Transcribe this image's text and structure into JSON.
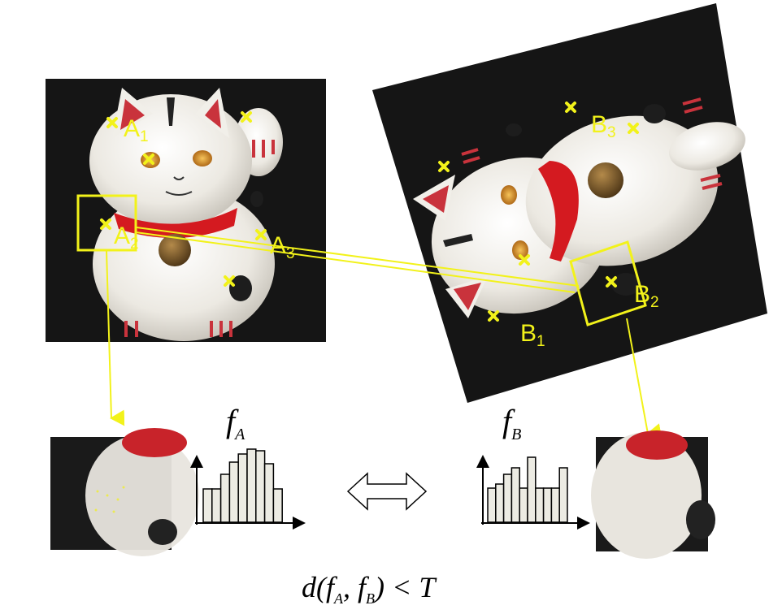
{
  "colors": {
    "marker": "#f2f21a",
    "bg": "#151515",
    "cat_body": "#f1efe9",
    "cat_shadow": "#c9c5bd",
    "collar": "#d41a20",
    "ear_inner": "#c9333c",
    "bell": "#6b4a22",
    "hist_fill": "#ecebe3",
    "axis": "#000000"
  },
  "image_a": {
    "points": [
      {
        "name": "A",
        "sub": "1"
      },
      {
        "name": "A",
        "sub": "2"
      },
      {
        "name": "A",
        "sub": "3"
      }
    ]
  },
  "image_b": {
    "points": [
      {
        "name": "B",
        "sub": "1"
      },
      {
        "name": "B",
        "sub": "2"
      },
      {
        "name": "B",
        "sub": "3"
      }
    ]
  },
  "descriptors": {
    "fa": {
      "base": "f",
      "sub": "A"
    },
    "fb": {
      "base": "f",
      "sub": "B"
    }
  },
  "formula": {
    "prefix": "d(",
    "f1": "f",
    "s1": "A",
    "comma": ", ",
    "f2": "f",
    "s2": "B",
    "suffix": ") < T"
  }
}
